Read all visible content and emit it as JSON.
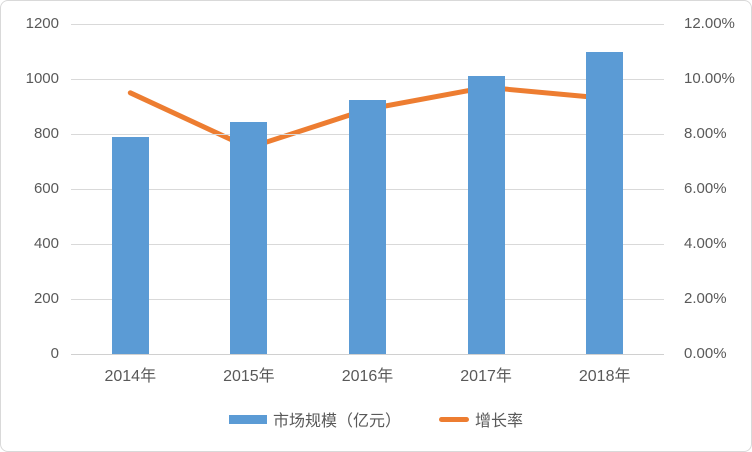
{
  "chart_data": {
    "type": "combo",
    "categories": [
      "2014年",
      "2015年",
      "2016年",
      "2017年",
      "2018年"
    ],
    "series": [
      {
        "name": "市场规模（亿元）",
        "type": "bar",
        "axis": "left",
        "values": [
          790,
          845,
          925,
          1010,
          1100
        ],
        "color": "#5b9bd5"
      },
      {
        "name": "增长率",
        "type": "line",
        "axis": "right",
        "values": [
          9.5,
          7.5,
          8.9,
          9.7,
          9.3
        ],
        "unit": "%",
        "color": "#ed7d31"
      }
    ],
    "left_axis": {
      "min": 0,
      "max": 1200,
      "step": 200,
      "tick_labels": [
        "1200",
        "1000",
        "800",
        "600",
        "400",
        "200",
        "0"
      ]
    },
    "right_axis": {
      "min": 0,
      "max": 12,
      "step": 2,
      "tick_labels": [
        "12.00%",
        "10.00%",
        "8.00%",
        "6.00%",
        "4.00%",
        "2.00%",
        "0.00%"
      ]
    },
    "grid": true,
    "legend_position": "bottom"
  },
  "colors": {
    "bar": "#5b9bd5",
    "line": "#ed7d31",
    "gridline": "#d9d9d9",
    "axis_text": "#595959",
    "border": "#d9d9d9",
    "background": "#ffffff"
  }
}
